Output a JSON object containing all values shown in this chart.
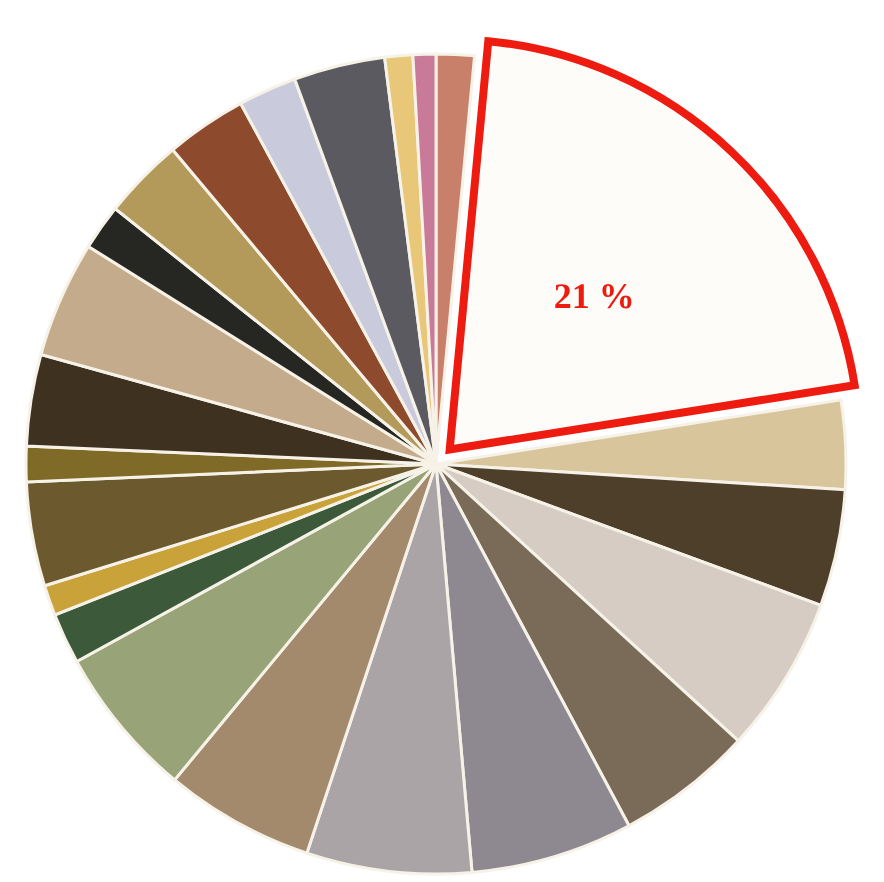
{
  "chart_data": {
    "type": "pie",
    "categories": [
      null,
      null,
      null,
      null,
      null,
      null,
      null,
      null,
      null,
      null,
      null,
      null,
      null,
      null,
      null,
      null,
      null,
      null,
      null,
      null,
      null,
      null,
      null
    ],
    "values": [
      1.5,
      21,
      3.5,
      4.6,
      6.2,
      5.4,
      6.4,
      6.5,
      5.9,
      6.0,
      2.0,
      1.2,
      4.1,
      1.4,
      3.6,
      4.6,
      1.8,
      3.2,
      3.2,
      2.3,
      3.6,
      1.1,
      0.9
    ],
    "colors": [
      "#c8806a",
      "#fdfcf9",
      "#d9c59c",
      "#4e3f2b",
      "#d6ccc4",
      "#7a6b58",
      "#8e8990",
      "#aaa4a6",
      "#a48a6c",
      "#98a478",
      "#3c5a3a",
      "#c9a23a",
      "#6c5a2e",
      "#806a28",
      "#3e3120",
      "#c4ab8c",
      "#262622",
      "#b49a5a",
      "#8e4a2c",
      "#c9cbdc",
      "#5a5a60",
      "#e8c878",
      "#c97a98"
    ],
    "value_labels": [
      null,
      "21 %",
      null,
      null,
      null,
      null,
      null,
      null,
      null,
      null,
      null,
      null,
      null,
      null,
      null,
      null,
      null,
      null,
      null,
      null,
      null,
      null,
      null
    ]
  }
}
